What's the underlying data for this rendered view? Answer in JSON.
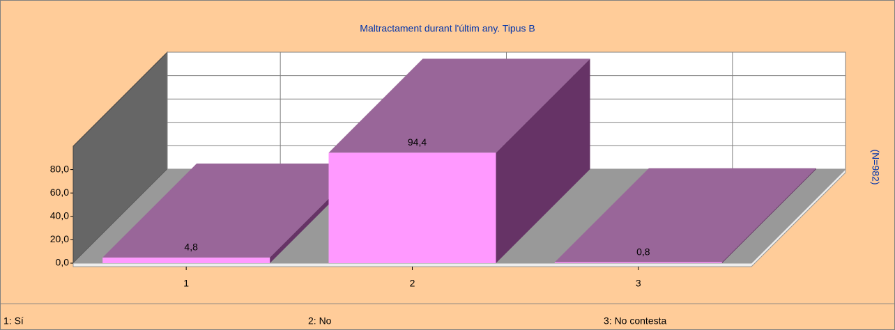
{
  "chart_data": {
    "type": "bar3d",
    "title": "Maltractament durant l'últim any. Tipus B",
    "side_label": "(N=982)",
    "categories": [
      "1",
      "2",
      "3"
    ],
    "values": [
      4.8,
      94.4,
      0.8
    ],
    "value_labels": [
      "4,8",
      "94,4",
      "0,8"
    ],
    "legend": [
      "1: Sí",
      "2: No",
      "3: No contesta"
    ],
    "ylim": [
      0,
      100
    ],
    "yticks": [
      {
        "value": 0,
        "label": "0,0"
      },
      {
        "value": 20,
        "label": "20,0"
      },
      {
        "value": 40,
        "label": "40,0"
      },
      {
        "value": 60,
        "label": "60,0"
      },
      {
        "value": 80,
        "label": "80,0"
      }
    ],
    "grid": true,
    "colors": {
      "front": "#ff99ff",
      "top": "#996699",
      "side": "#663366"
    }
  }
}
